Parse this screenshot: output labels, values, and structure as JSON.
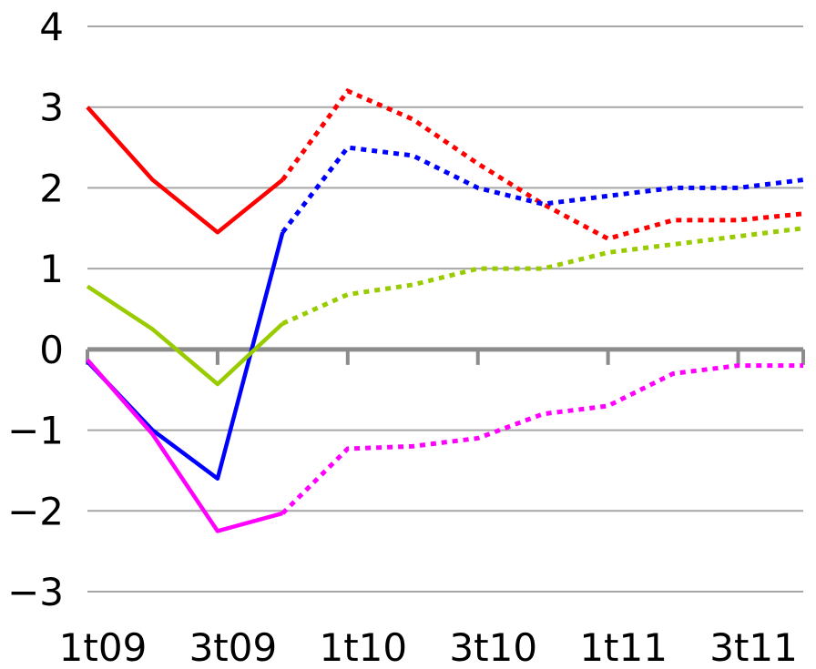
{
  "chart_data": {
    "type": "line",
    "title": "",
    "xlabel": "",
    "ylabel": "",
    "ylim": [
      -3,
      4
    ],
    "y_ticks": [
      -3,
      -2,
      -1,
      0,
      1,
      2,
      3,
      4
    ],
    "y_tick_labels": [
      "−3",
      "−2",
      "−1",
      "0",
      "1",
      "2",
      "3",
      "4"
    ],
    "x": [
      "1t09",
      "2t09",
      "3t09",
      "4t09",
      "1t10",
      "2t10",
      "3t10",
      "4t10",
      "1t11",
      "2t11",
      "3t11",
      "4t11"
    ],
    "x_tick_labels": [
      {
        "label": "1t09",
        "x": "1t09"
      },
      {
        "label": "3t09",
        "x": "3t09"
      },
      {
        "label": "1t10",
        "x": "1t10"
      },
      {
        "label": "3t10",
        "x": "3t10"
      },
      {
        "label": "1t11",
        "x": "1t11"
      },
      {
        "label": "3t11",
        "x": "3t11"
      }
    ],
    "grid": true,
    "legend": "none",
    "forecast_style": "dotted",
    "series": [
      {
        "color": "#ff0000",
        "solid_until": "4t09",
        "values": [
          3.0,
          2.1,
          1.45,
          2.1,
          3.2,
          2.85,
          2.3,
          1.8,
          1.37,
          1.6,
          1.6,
          1.68
        ]
      },
      {
        "color": "#0000ff",
        "solid_until": "4t09",
        "values": [
          -0.15,
          -1.0,
          -1.6,
          1.45,
          2.5,
          2.4,
          2.0,
          1.8,
          1.9,
          2.0,
          2.0,
          2.1
        ]
      },
      {
        "color": "#99cc00",
        "solid_until": "4t09",
        "values": [
          0.78,
          0.25,
          -0.43,
          0.32,
          0.68,
          0.8,
          1.0,
          1.0,
          1.2,
          1.3,
          1.4,
          1.5
        ]
      },
      {
        "color": "#ff00ff",
        "solid_until": "4t09",
        "values": [
          -0.13,
          -1.05,
          -2.25,
          -2.03,
          -1.23,
          -1.2,
          -1.1,
          -0.8,
          -0.7,
          -0.3,
          -0.2,
          -0.2
        ]
      }
    ]
  }
}
